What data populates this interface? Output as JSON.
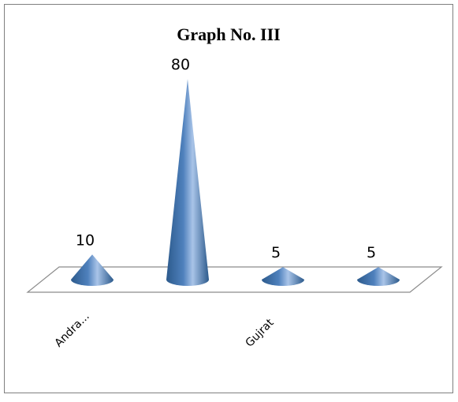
{
  "chart_data": {
    "type": "bar",
    "bar_shape": "cone",
    "title": "Graph No. III",
    "categories": [
      "Andra...",
      "",
      "Gujrat",
      ""
    ],
    "values": [
      10,
      80,
      5,
      5
    ],
    "data_labels": [
      "10",
      "80",
      "5",
      "5"
    ],
    "ylim": [
      0,
      80
    ],
    "xlabel": "",
    "ylabel": "",
    "grid": false,
    "legend": "none",
    "colors": {
      "bar": "#4f81bd",
      "bar_dark": "#2c5a8c",
      "bar_light": "#a9c4e8",
      "floor_edge": "#8c8c8c",
      "frame": "#7f7f7f"
    }
  }
}
